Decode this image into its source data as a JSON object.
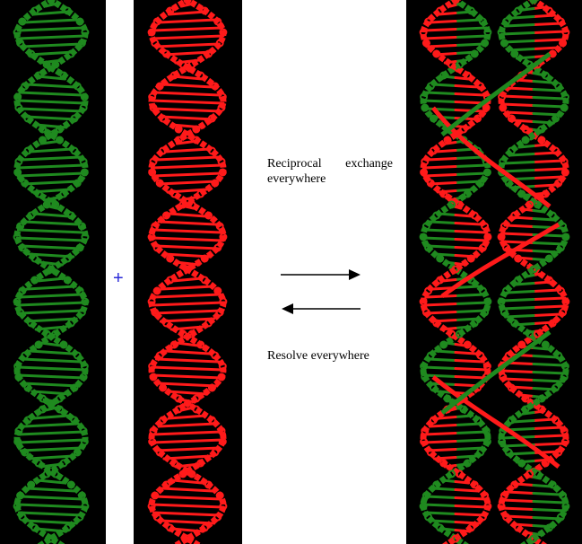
{
  "labels": {
    "exchange_line1_a": "Reciprocal",
    "exchange_line1_b": "exchange",
    "exchange_line2": "everywhere",
    "resolve": "Resolve everywhere",
    "plus": "+"
  },
  "colors": {
    "green_strand": "#1f8a1f",
    "red_strand": "#ff1a1a",
    "plus_sign": "#2a2ad8",
    "background_panel": "#000000",
    "arrow": "#000000"
  },
  "icons": {
    "forward_arrow": "right-arrow-icon",
    "backward_arrow": "left-arrow-icon"
  }
}
